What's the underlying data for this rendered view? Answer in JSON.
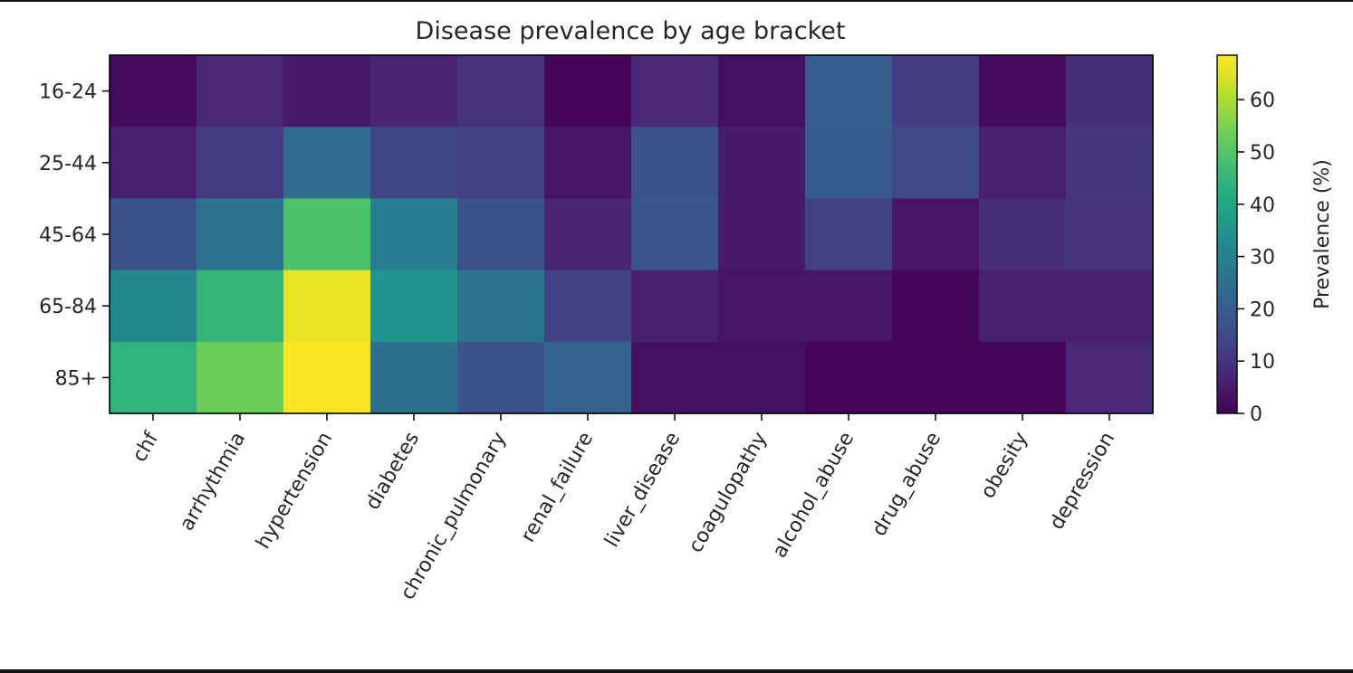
{
  "chart_data": {
    "type": "heatmap",
    "title": "Disease prevalence by age bracket",
    "x_categories": [
      "chf",
      "arrhythmia",
      "hypertension",
      "diabetes",
      "chronic_pulmonary",
      "renal_failure",
      "liver_disease",
      "coagulopathy",
      "alcohol_abuse",
      "drug_abuse",
      "obesity",
      "depression"
    ],
    "y_categories": [
      "16-24",
      "25-44",
      "45-64",
      "65-84",
      "85+"
    ],
    "values": [
      [
        2,
        8,
        5,
        7,
        10,
        1,
        8,
        3,
        20,
        12,
        2,
        9
      ],
      [
        6,
        12,
        24,
        14,
        13,
        4,
        17,
        5,
        19,
        15,
        6,
        11
      ],
      [
        17,
        26,
        49,
        29,
        17,
        7,
        18,
        5,
        13,
        4,
        9,
        10
      ],
      [
        31,
        45,
        66,
        35,
        26,
        13,
        6,
        4,
        4,
        1,
        6,
        6
      ],
      [
        44,
        53,
        68,
        25,
        17,
        21,
        3,
        3,
        1,
        1,
        1,
        8
      ]
    ],
    "colorbar": {
      "label": "Prevalence (%)",
      "min": 0,
      "max": 68.5,
      "ticks": [
        0,
        10,
        20,
        30,
        40,
        50,
        60
      ],
      "colormap": "viridis"
    },
    "xlabel": "",
    "ylabel": ""
  }
}
